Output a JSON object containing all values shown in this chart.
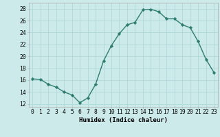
{
  "x": [
    0,
    1,
    2,
    3,
    4,
    5,
    6,
    7,
    8,
    9,
    10,
    11,
    12,
    13,
    14,
    15,
    16,
    17,
    18,
    19,
    20,
    21,
    22,
    23
  ],
  "y": [
    16.2,
    16.1,
    15.3,
    14.8,
    14.0,
    13.5,
    12.2,
    13.0,
    15.3,
    19.2,
    21.8,
    23.8,
    25.3,
    25.7,
    27.8,
    27.9,
    27.5,
    26.3,
    26.3,
    25.3,
    24.8,
    22.5,
    19.5,
    17.3
  ],
  "line_color": "#2e7d6e",
  "marker": "D",
  "marker_size": 2.2,
  "bg_color": "#cceaea",
  "grid_color": "#b0d8d8",
  "xlabel": "Humidex (Indice chaleur)",
  "xlim": [
    -0.5,
    23.5
  ],
  "ylim": [
    11.5,
    29.0
  ],
  "yticks": [
    12,
    14,
    16,
    18,
    20,
    22,
    24,
    26,
    28
  ],
  "xticks": [
    0,
    1,
    2,
    3,
    4,
    5,
    6,
    7,
    8,
    9,
    10,
    11,
    12,
    13,
    14,
    15,
    16,
    17,
    18,
    19,
    20,
    21,
    22,
    23
  ],
  "xlabel_fontsize": 6.5,
  "tick_fontsize": 5.8
}
